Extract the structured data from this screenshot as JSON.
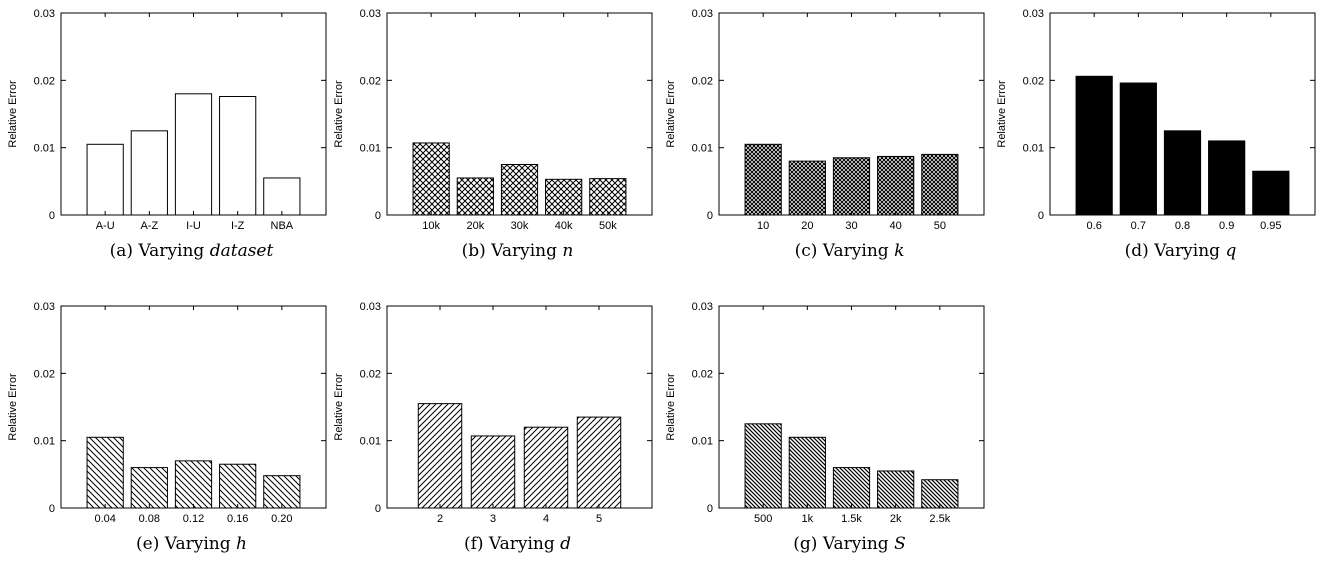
{
  "chart_data": [
    {
      "type": "bar",
      "caption_prefix": "(a) Varying",
      "caption_var": "dataset",
      "ylabel": "Relative Error",
      "ylim": [
        0,
        0.03
      ],
      "yticks": [
        "0",
        "0.01",
        "0.02",
        "0.03"
      ],
      "categories": [
        "A-U",
        "A-Z",
        "I-U",
        "I-Z",
        "NBA"
      ],
      "values": [
        0.0105,
        0.0125,
        0.018,
        0.0176,
        0.0055
      ],
      "pattern": "white"
    },
    {
      "type": "bar",
      "caption_prefix": "(b) Varying",
      "caption_var": "n",
      "ylabel": "Relative Error",
      "ylim": [
        0,
        0.03
      ],
      "yticks": [
        "0",
        "0.01",
        "0.02",
        "0.03"
      ],
      "categories": [
        "10k",
        "20k",
        "30k",
        "40k",
        "50k"
      ],
      "values": [
        0.0107,
        0.0055,
        0.0075,
        0.0053,
        0.0054
      ],
      "pattern": "crosshatch"
    },
    {
      "type": "bar",
      "caption_prefix": "(c) Varying",
      "caption_var": "k",
      "ylabel": "Relative Error",
      "ylim": [
        0,
        0.03
      ],
      "yticks": [
        "0",
        "0.01",
        "0.02",
        "0.03"
      ],
      "categories": [
        "10",
        "20",
        "30",
        "40",
        "50"
      ],
      "values": [
        0.0105,
        0.008,
        0.0085,
        0.0087,
        0.009
      ],
      "pattern": "densecross"
    },
    {
      "type": "bar",
      "caption_prefix": "(d) Varying",
      "caption_var": "q",
      "ylabel": "Relative Error",
      "ylim": [
        0,
        0.03
      ],
      "yticks": [
        "0",
        "0.01",
        "0.02",
        "0.03"
      ],
      "categories": [
        "0.6",
        "0.7",
        "0.8",
        "0.9",
        "0.95"
      ],
      "values": [
        0.0206,
        0.0196,
        0.0125,
        0.011,
        0.0065
      ],
      "pattern": "black"
    },
    {
      "type": "bar",
      "caption_prefix": "(e) Varying",
      "caption_var": "h",
      "ylabel": "Relative Error",
      "ylim": [
        0,
        0.03
      ],
      "yticks": [
        "0",
        "0.01",
        "0.02",
        "0.03"
      ],
      "categories": [
        "0.04",
        "0.08",
        "0.12",
        "0.16",
        "0.20"
      ],
      "values": [
        0.0105,
        0.006,
        0.007,
        0.0065,
        0.0048
      ],
      "pattern": "backslash"
    },
    {
      "type": "bar",
      "caption_prefix": "(f) Varying",
      "caption_var": "d",
      "ylabel": "Relative Error",
      "ylim": [
        0,
        0.03
      ],
      "yticks": [
        "0",
        "0.01",
        "0.02",
        "0.03"
      ],
      "categories": [
        "2",
        "3",
        "4",
        "5"
      ],
      "values": [
        0.0155,
        0.0107,
        0.012,
        0.0135
      ],
      "pattern": "slash"
    },
    {
      "type": "bar",
      "caption_prefix": "(g) Varying",
      "caption_var": "S",
      "ylabel": "Relative Error",
      "ylim": [
        0,
        0.03
      ],
      "yticks": [
        "0",
        "0.01",
        "0.02",
        "0.03"
      ],
      "categories": [
        "500",
        "1k",
        "1.5k",
        "2k",
        "2.5k"
      ],
      "values": [
        0.0125,
        0.0105,
        0.006,
        0.0055,
        0.0042
      ],
      "pattern": "denseback"
    }
  ]
}
